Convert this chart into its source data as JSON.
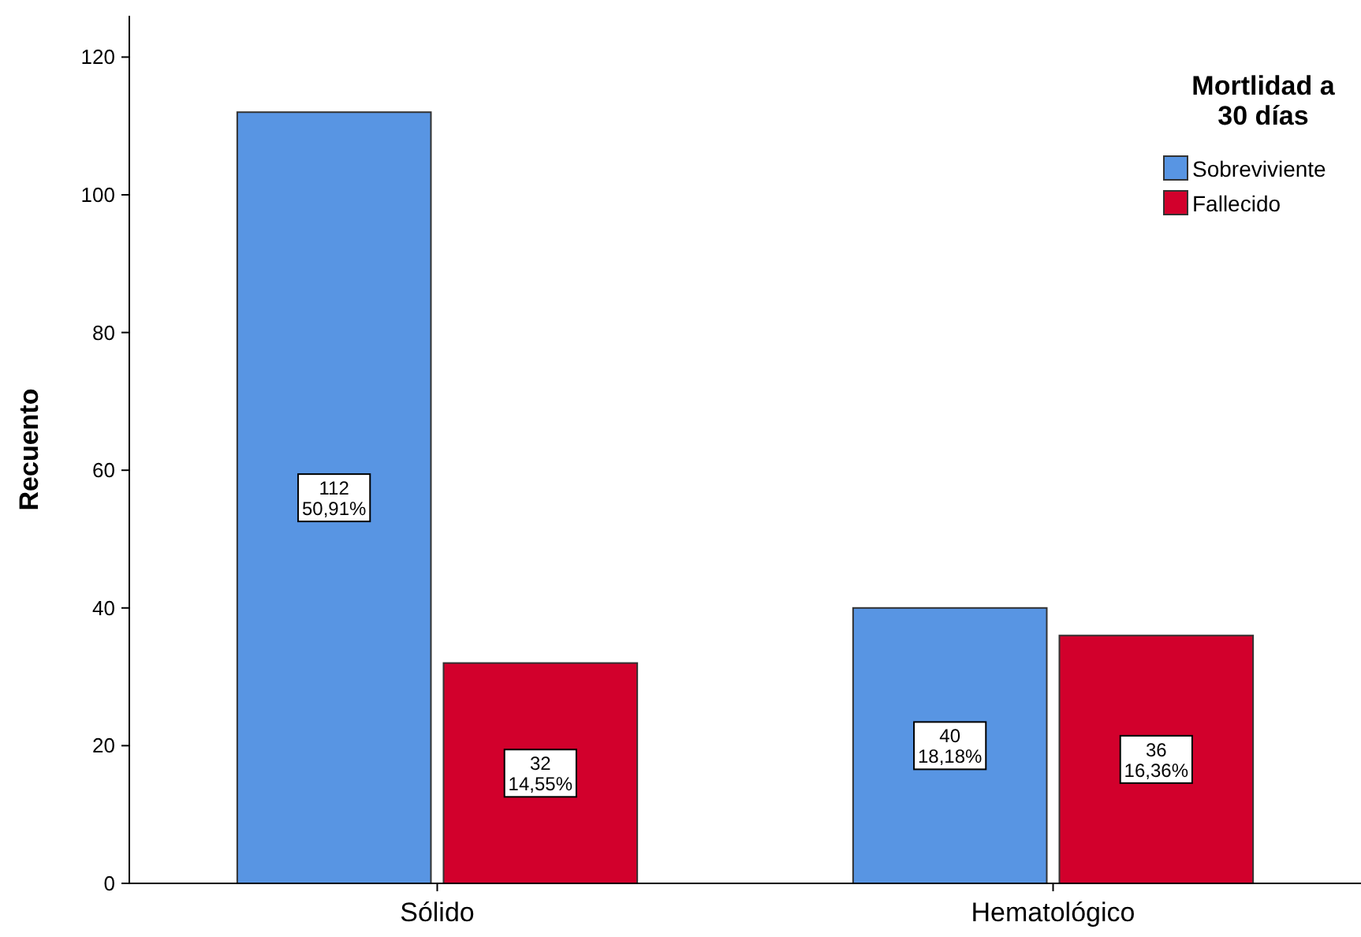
{
  "chart_data": {
    "type": "bar",
    "ylabel": "Recuento",
    "legend_title": "Mortlidad a 30 días",
    "categories": [
      "Sólido",
      "Hematológico"
    ],
    "series": [
      {
        "name": "Sobreviviente",
        "color": "#5895e3",
        "values": [
          112,
          40
        ],
        "value_labels": [
          "112\n50,91%",
          "40\n18,18%"
        ]
      },
      {
        "name": "Fallecido",
        "color": "#d2002c",
        "values": [
          32,
          36
        ],
        "value_labels": [
          "32\n14,55%",
          "36\n16,36%"
        ]
      }
    ],
    "ylim": [
      0,
      126
    ],
    "yticks": [
      0,
      20,
      40,
      60,
      80,
      100,
      120
    ],
    "grid": false,
    "legend": "top right"
  }
}
